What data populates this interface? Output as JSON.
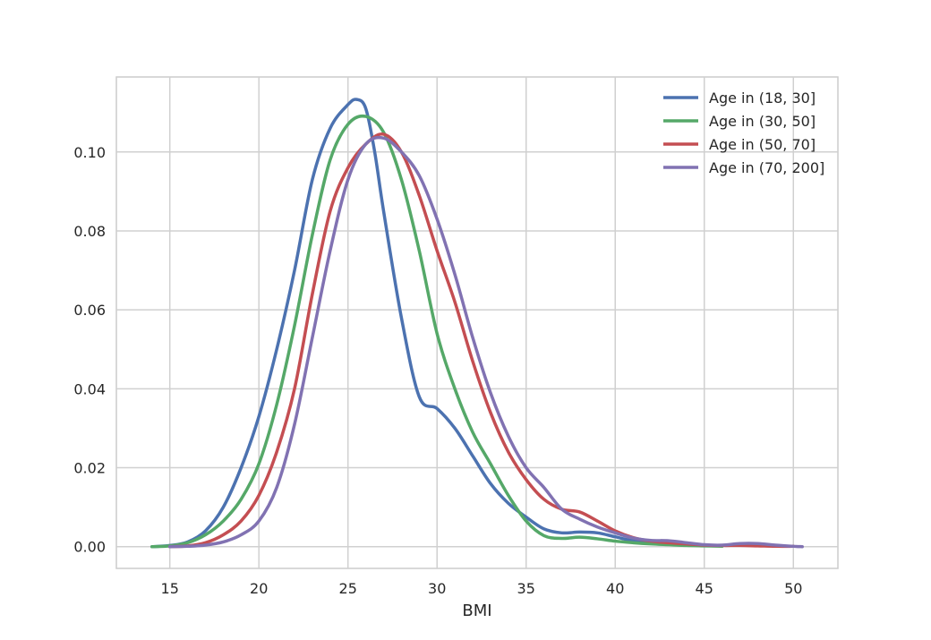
{
  "chart_data": {
    "type": "line",
    "title": "",
    "xlabel": "BMI",
    "ylabel": "",
    "xlim": [
      12,
      52.5
    ],
    "ylim": [
      -0.0055,
      0.119
    ],
    "grid": true,
    "legend_position": "top-right",
    "x_ticks": [
      {
        "value": 15,
        "label": "15"
      },
      {
        "value": 20,
        "label": "20"
      },
      {
        "value": 25,
        "label": "25"
      },
      {
        "value": 30,
        "label": "30"
      },
      {
        "value": 35,
        "label": "35"
      },
      {
        "value": 40,
        "label": "40"
      },
      {
        "value": 45,
        "label": "45"
      },
      {
        "value": 50,
        "label": "50"
      }
    ],
    "y_ticks": [
      {
        "value": 0.0,
        "label": "0.00"
      },
      {
        "value": 0.02,
        "label": "0.02"
      },
      {
        "value": 0.04,
        "label": "0.04"
      },
      {
        "value": 0.06,
        "label": "0.06"
      },
      {
        "value": 0.08,
        "label": "0.08"
      },
      {
        "value": 0.1,
        "label": "0.10"
      }
    ],
    "series": [
      {
        "name": "Age in (18, 30]",
        "color": "#4c72b0",
        "points": [
          [
            14,
            0
          ],
          [
            15,
            0.0003
          ],
          [
            16,
            0.0012
          ],
          [
            17,
            0.004
          ],
          [
            18,
            0.01
          ],
          [
            19,
            0.02
          ],
          [
            20,
            0.033
          ],
          [
            21,
            0.05
          ],
          [
            22,
            0.07
          ],
          [
            23,
            0.093
          ],
          [
            24,
            0.106
          ],
          [
            25,
            0.112
          ],
          [
            25.5,
            0.1133
          ],
          [
            26,
            0.111
          ],
          [
            26.5,
            0.1
          ],
          [
            27,
            0.085
          ],
          [
            28,
            0.058
          ],
          [
            29,
            0.038
          ],
          [
            30,
            0.035
          ],
          [
            31,
            0.03
          ],
          [
            32,
            0.023
          ],
          [
            33,
            0.016
          ],
          [
            34,
            0.011
          ],
          [
            35,
            0.0075
          ],
          [
            36,
            0.0045
          ],
          [
            37,
            0.0035
          ],
          [
            38,
            0.0037
          ],
          [
            39,
            0.0035
          ],
          [
            40,
            0.0025
          ],
          [
            41,
            0.0015
          ],
          [
            42,
            0.001
          ],
          [
            43,
            0.0008
          ],
          [
            44,
            0.0005
          ],
          [
            45,
            0.0003
          ],
          [
            46,
            0.0002
          ]
        ]
      },
      {
        "name": "Age in (30, 50]",
        "color": "#55a868",
        "points": [
          [
            14,
            0
          ],
          [
            15,
            0.0002
          ],
          [
            16,
            0.001
          ],
          [
            17,
            0.003
          ],
          [
            18,
            0.0065
          ],
          [
            19,
            0.012
          ],
          [
            20,
            0.021
          ],
          [
            21,
            0.036
          ],
          [
            22,
            0.056
          ],
          [
            23,
            0.079
          ],
          [
            24,
            0.098
          ],
          [
            25,
            0.107
          ],
          [
            26,
            0.109
          ],
          [
            27,
            0.105
          ],
          [
            28,
            0.093
          ],
          [
            29,
            0.075
          ],
          [
            30,
            0.054
          ],
          [
            31,
            0.04
          ],
          [
            32,
            0.029
          ],
          [
            33,
            0.021
          ],
          [
            34,
            0.013
          ],
          [
            35,
            0.0065
          ],
          [
            36,
            0.0028
          ],
          [
            37,
            0.0021
          ],
          [
            38,
            0.0024
          ],
          [
            39,
            0.002
          ],
          [
            40,
            0.0014
          ],
          [
            41,
            0.001
          ],
          [
            42,
            0.0007
          ],
          [
            43,
            0.0005
          ],
          [
            44,
            0.0003
          ],
          [
            45,
            0.0002
          ],
          [
            46,
            0.0001
          ]
        ]
      },
      {
        "name": "Age in (50, 70]",
        "color": "#c44e52",
        "points": [
          [
            15,
            0
          ],
          [
            16,
            0.0002
          ],
          [
            17,
            0.001
          ],
          [
            18,
            0.003
          ],
          [
            19,
            0.0065
          ],
          [
            20,
            0.013
          ],
          [
            21,
            0.024
          ],
          [
            22,
            0.04
          ],
          [
            23,
            0.064
          ],
          [
            24,
            0.085
          ],
          [
            25,
            0.096
          ],
          [
            26,
            0.102
          ],
          [
            27,
            0.1045
          ],
          [
            28,
            0.1
          ],
          [
            29,
            0.089
          ],
          [
            30,
            0.075
          ],
          [
            31,
            0.062
          ],
          [
            32,
            0.047
          ],
          [
            33,
            0.034
          ],
          [
            34,
            0.024
          ],
          [
            35,
            0.017
          ],
          [
            36,
            0.012
          ],
          [
            37,
            0.0095
          ],
          [
            38,
            0.0088
          ],
          [
            39,
            0.0065
          ],
          [
            40,
            0.004
          ],
          [
            41,
            0.0023
          ],
          [
            42,
            0.0014
          ],
          [
            43,
            0.001
          ],
          [
            44,
            0.0007
          ],
          [
            45,
            0.0004
          ],
          [
            46,
            0.0003
          ],
          [
            47,
            0.0003
          ],
          [
            48,
            0.0002
          ],
          [
            49,
            0.0001
          ],
          [
            50,
            0.0001
          ]
        ]
      },
      {
        "name": "Age in (70, 200]",
        "color": "#8172b2",
        "points": [
          [
            15,
            0
          ],
          [
            16,
            0.0001
          ],
          [
            17,
            0.0004
          ],
          [
            18,
            0.0012
          ],
          [
            19,
            0.003
          ],
          [
            20,
            0.0065
          ],
          [
            21,
            0.015
          ],
          [
            22,
            0.031
          ],
          [
            23,
            0.053
          ],
          [
            24,
            0.075
          ],
          [
            25,
            0.093
          ],
          [
            26,
            0.102
          ],
          [
            27,
            0.1035
          ],
          [
            28,
            0.1
          ],
          [
            29,
            0.094
          ],
          [
            30,
            0.083
          ],
          [
            31,
            0.069
          ],
          [
            32,
            0.053
          ],
          [
            33,
            0.039
          ],
          [
            34,
            0.028
          ],
          [
            35,
            0.02
          ],
          [
            36,
            0.015
          ],
          [
            37,
            0.0095
          ],
          [
            38,
            0.007
          ],
          [
            39,
            0.005
          ],
          [
            40,
            0.0035
          ],
          [
            41,
            0.0022
          ],
          [
            42,
            0.0016
          ],
          [
            43,
            0.0015
          ],
          [
            44,
            0.001
          ],
          [
            45,
            0.0005
          ],
          [
            46,
            0.0004
          ],
          [
            47,
            0.0008
          ],
          [
            48,
            0.0008
          ],
          [
            49,
            0.0004
          ],
          [
            50,
            0.0001
          ],
          [
            50.5,
            0
          ]
        ]
      }
    ]
  }
}
